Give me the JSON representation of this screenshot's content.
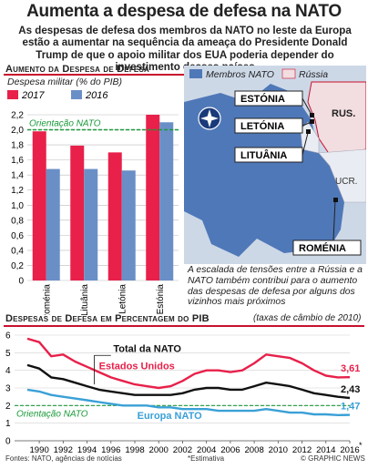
{
  "title": "Aumenta a despesa de defesa na NATO",
  "intro": "As despesas de defesa dos membros da NATO no leste da Europa estão a aumentar na sequência da ameaça do Presidente Donald Trump de que o apoio militar dos EUA poderia depender do investimento desses países",
  "colors": {
    "accent": "#c8102e",
    "y2017": "#e8204a",
    "y2016": "#6a8fc7",
    "nato_line": "#1a9a3a",
    "usa": "#e8204a",
    "total": "#111111",
    "europe": "#3aa0d6",
    "map_nato": "#4f78b8",
    "map_russia": "#f2dde0"
  },
  "bar_section": {
    "title": "Aumento da Despesa de Defesa",
    "subtitle": "Despesa militar (% do PIB)",
    "legend_2017": "2017",
    "legend_2016": "2016",
    "guideline_label": "Orientação NATO"
  },
  "map": {
    "legend_nato": "Membros NATO",
    "legend_russia": "Rússia",
    "labels": {
      "estonia": "ESTÓNIA",
      "latvia": "LETÓNIA",
      "lithuania": "LITUÂNIA",
      "romania": "ROMÉNIA",
      "russia": "RUS.",
      "ukraine": "UCR."
    },
    "caption": "A escalada de tensões entre a Rússia e a NATO também contribui para o aumento das despesas de defesa por alguns dos vizinhos mais próximos"
  },
  "line_section": {
    "title": "Despesas de Defesa em Percentagem do PIB",
    "subtitle": "(taxas de câmbio de 2010)",
    "guideline_label": "Orientação NATO",
    "end_2016_marker": "*"
  },
  "footer": {
    "sources": "Fontes: NATO, agências de notícias",
    "note": "*Estimativa",
    "credit": "© GRAPHIC NEWS"
  },
  "chart_data": [
    {
      "type": "bar",
      "title": "Aumento da Despesa de Defesa",
      "ylabel": "Despesa militar (% do PIB)",
      "categories": [
        "Roménia",
        "Lituânia",
        "Letónia",
        "Estónia"
      ],
      "series": [
        {
          "name": "2017",
          "values": [
            1.98,
            1.79,
            1.7,
            2.2
          ]
        },
        {
          "name": "2016",
          "values": [
            1.48,
            1.48,
            1.46,
            2.1
          ]
        }
      ],
      "yticks": [
        "0",
        "0,2",
        "0,4",
        "0,6",
        "0,8",
        "1,0",
        "1,2",
        "1,4",
        "1,6",
        "1,8",
        "2,0",
        "2,2"
      ],
      "ylim": [
        0,
        2.2
      ],
      "guideline": 2.0
    },
    {
      "type": "line",
      "title": "Despesas de Defesa em Percentagem do PIB",
      "x": [
        1989,
        1990,
        1991,
        1992,
        1993,
        1994,
        1995,
        1996,
        1997,
        1998,
        1999,
        2000,
        2001,
        2002,
        2003,
        2004,
        2005,
        2006,
        2007,
        2008,
        2009,
        2010,
        2011,
        2012,
        2013,
        2014,
        2015,
        2016
      ],
      "xticks": [
        "1990",
        "1992",
        "1994",
        "1996",
        "1998",
        "2000",
        "2002",
        "2004",
        "2006",
        "2008",
        "2010",
        "2012",
        "2014",
        "2016"
      ],
      "yticks": [
        "0",
        "1",
        "2",
        "3",
        "4",
        "5",
        "6"
      ],
      "ylim": [
        0,
        6
      ],
      "guideline": 2.0,
      "series": [
        {
          "name": "Estados Unidos",
          "end_label": "3,61",
          "values": [
            5.8,
            5.6,
            4.8,
            4.9,
            4.5,
            4.2,
            3.9,
            3.6,
            3.4,
            3.2,
            3.1,
            3.0,
            3.1,
            3.4,
            3.8,
            4.0,
            4.0,
            3.9,
            4.0,
            4.4,
            4.9,
            4.8,
            4.7,
            4.4,
            4.0,
            3.7,
            3.6,
            3.61
          ]
        },
        {
          "name": "Total da NATO",
          "end_label": "2,43",
          "values": [
            4.3,
            4.1,
            3.6,
            3.5,
            3.3,
            3.1,
            2.9,
            2.8,
            2.7,
            2.6,
            2.6,
            2.6,
            2.6,
            2.7,
            2.9,
            3.0,
            3.0,
            2.9,
            2.9,
            3.1,
            3.3,
            3.2,
            3.1,
            2.9,
            2.7,
            2.6,
            2.5,
            2.43
          ]
        },
        {
          "name": "Europa NATO",
          "end_label": "1,47",
          "values": [
            2.9,
            2.8,
            2.6,
            2.5,
            2.4,
            2.3,
            2.2,
            2.1,
            2.0,
            2.0,
            2.0,
            1.9,
            1.9,
            1.8,
            1.8,
            1.8,
            1.7,
            1.7,
            1.7,
            1.7,
            1.8,
            1.7,
            1.6,
            1.6,
            1.5,
            1.5,
            1.46,
            1.47
          ]
        }
      ]
    }
  ]
}
